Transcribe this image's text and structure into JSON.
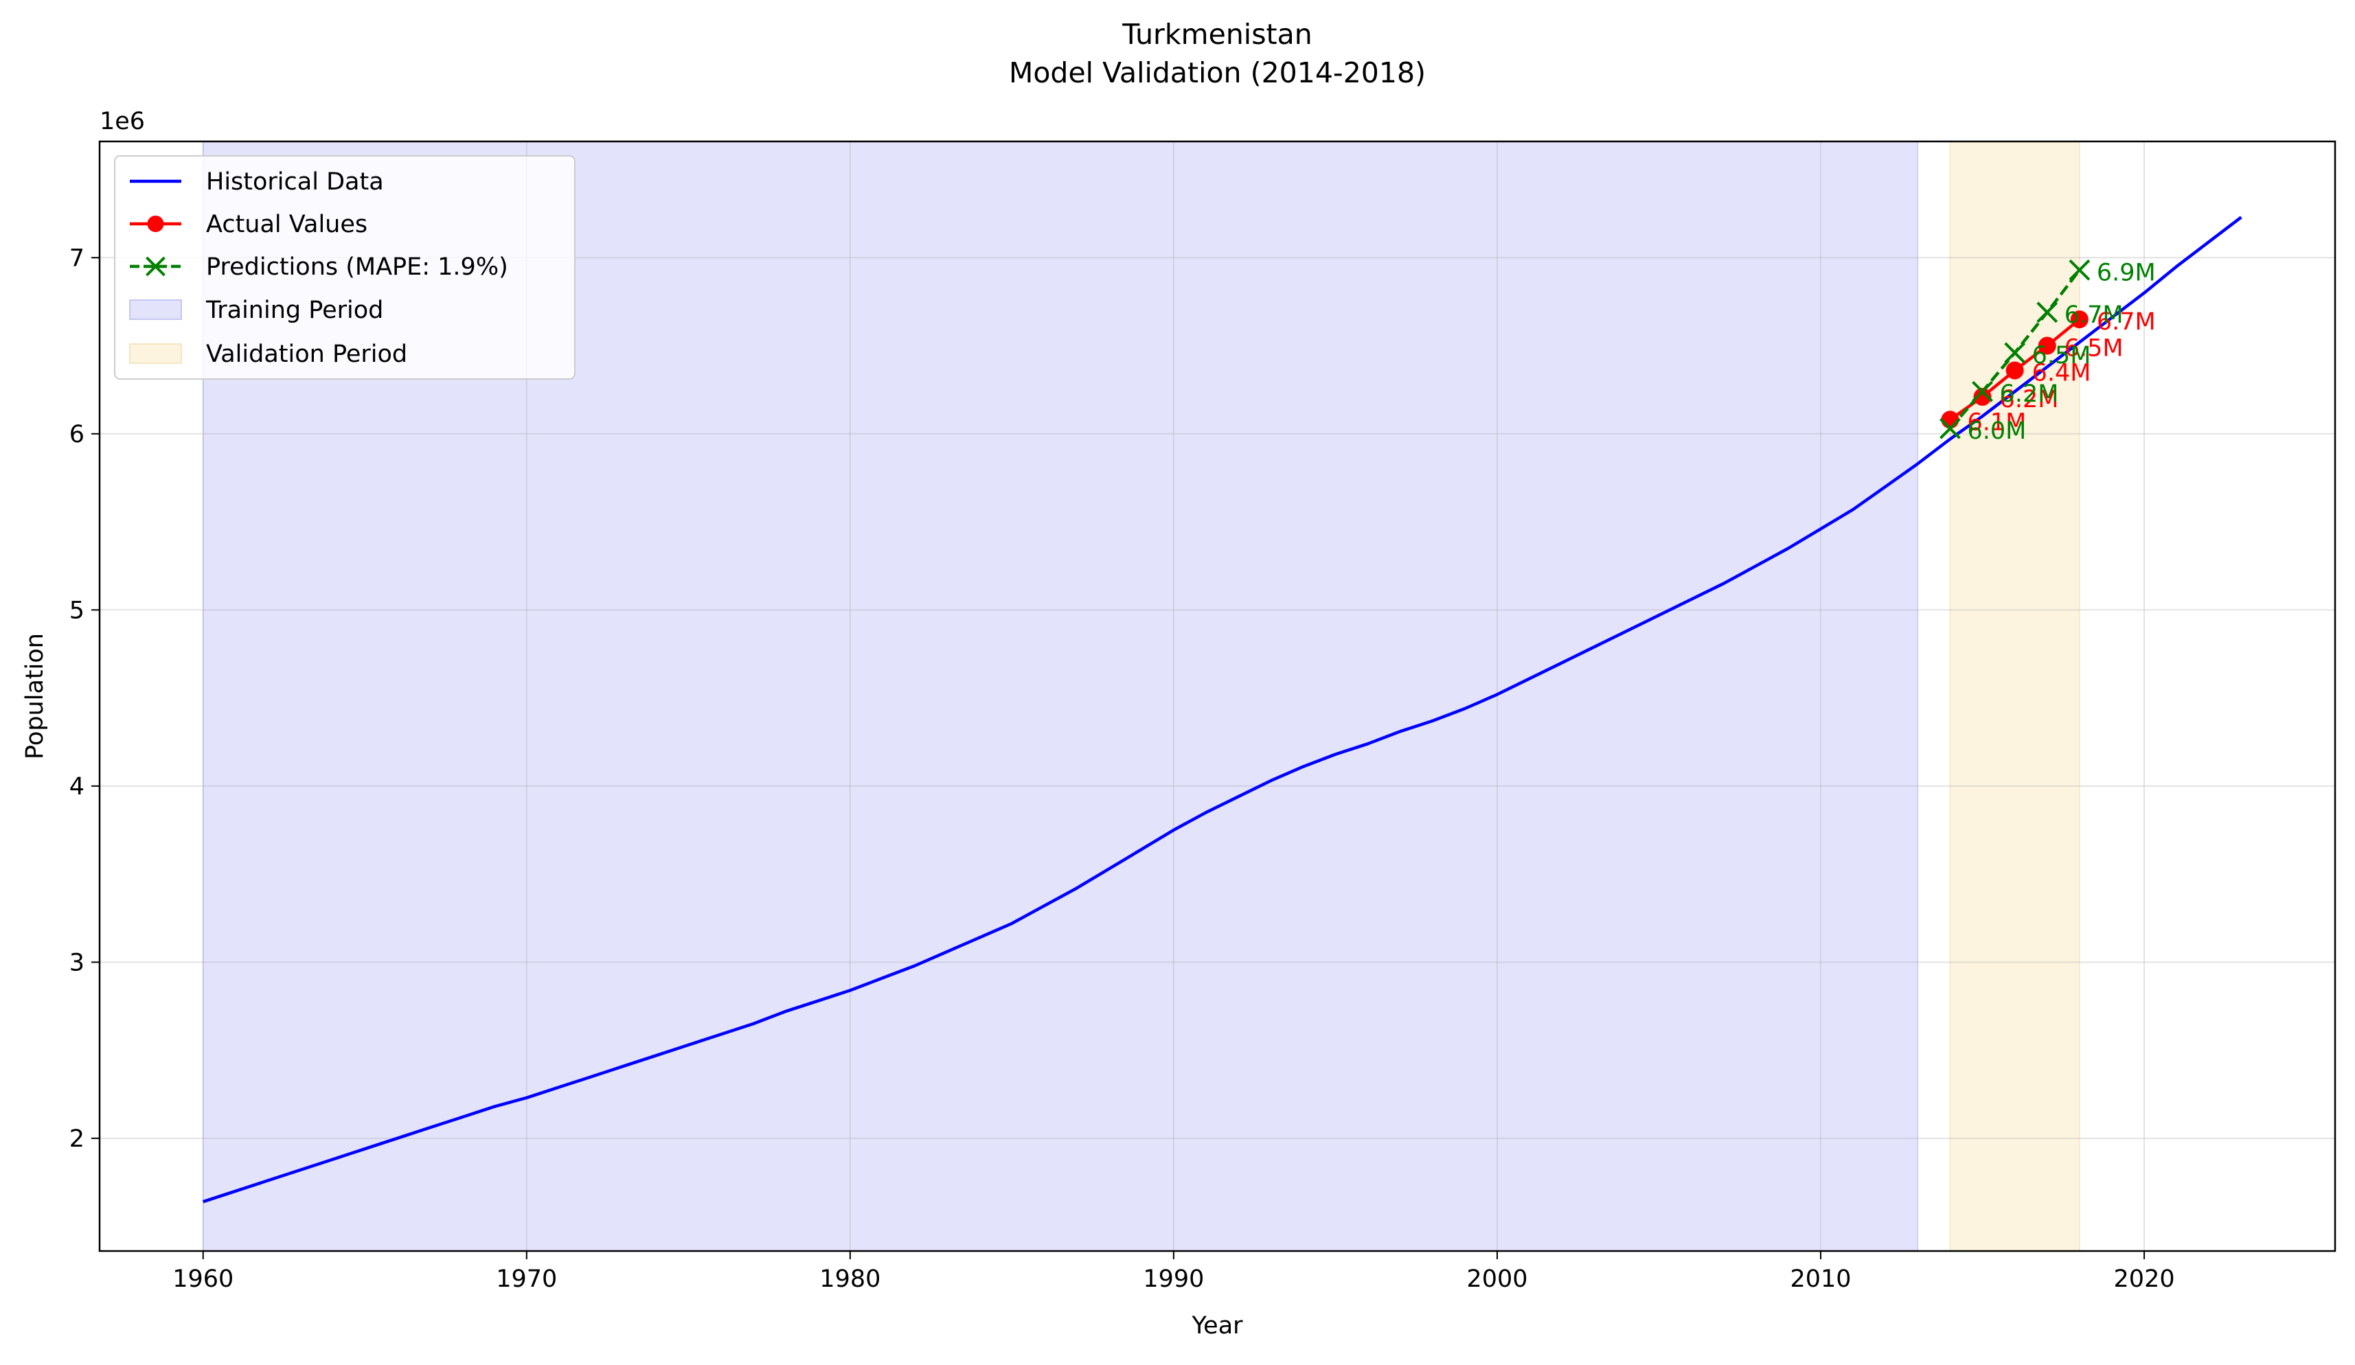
{
  "chart_data": {
    "type": "line",
    "title": "Turkmenistan",
    "subtitle": "Model Validation (2014-2018)",
    "xlabel": "Year",
    "ylabel": "Population",
    "y_offset_label": "1e6",
    "xlim": [
      1956.8,
      2025.9
    ],
    "ylim": [
      1.36,
      7.66
    ],
    "x_ticks": [
      1960,
      1970,
      1980,
      1990,
      2000,
      2010,
      2020
    ],
    "x_tick_labels": [
      "1960",
      "1970",
      "1980",
      "1990",
      "2000",
      "2010",
      "2020"
    ],
    "y_ticks": [
      2,
      3,
      4,
      5,
      6,
      7
    ],
    "y_tick_labels": [
      "2",
      "3",
      "4",
      "5",
      "6",
      "7"
    ],
    "grid": true,
    "legend_position": "top-left",
    "colors": {
      "historical": "#0000ff",
      "actual": "#ff0000",
      "predictions": "#008000",
      "training_fill": "#e3e3fc",
      "validation_fill": "#fdf4e0"
    },
    "shaded_regions": [
      {
        "name": "Training Period",
        "x_start": 1960,
        "x_end": 2013
      },
      {
        "name": "Validation Period",
        "x_start": 2014,
        "x_end": 2018
      }
    ],
    "series": [
      {
        "name": "Historical Data",
        "style": "solid-line",
        "x": [
          1960,
          1961,
          1962,
          1963,
          1964,
          1965,
          1966,
          1967,
          1968,
          1969,
          1970,
          1971,
          1972,
          1973,
          1974,
          1975,
          1976,
          1977,
          1978,
          1979,
          1980,
          1981,
          1982,
          1983,
          1984,
          1985,
          1986,
          1987,
          1988,
          1989,
          1990,
          1991,
          1992,
          1993,
          1994,
          1995,
          1996,
          1997,
          1998,
          1999,
          2000,
          2001,
          2002,
          2003,
          2004,
          2005,
          2006,
          2007,
          2008,
          2009,
          2010,
          2011,
          2012,
          2013,
          2014,
          2015,
          2016,
          2017,
          2018,
          2019,
          2020,
          2021,
          2022,
          2023
        ],
        "y": [
          1.64,
          1.7,
          1.76,
          1.82,
          1.88,
          1.94,
          2.0,
          2.06,
          2.12,
          2.18,
          2.23,
          2.29,
          2.35,
          2.41,
          2.47,
          2.53,
          2.59,
          2.65,
          2.72,
          2.78,
          2.84,
          2.91,
          2.98,
          3.06,
          3.14,
          3.22,
          3.32,
          3.42,
          3.53,
          3.64,
          3.75,
          3.85,
          3.94,
          4.03,
          4.11,
          4.18,
          4.24,
          4.31,
          4.37,
          4.44,
          4.52,
          4.61,
          4.7,
          4.79,
          4.88,
          4.97,
          5.06,
          5.15,
          5.25,
          5.35,
          5.46,
          5.57,
          5.7,
          5.83,
          5.97,
          6.1,
          6.24,
          6.38,
          6.52,
          6.66,
          6.8,
          6.95,
          7.09,
          7.23
        ]
      },
      {
        "name": "Actual Values",
        "style": "line-with-circles",
        "x": [
          2014,
          2015,
          2016,
          2017,
          2018
        ],
        "y": [
          6.08,
          6.21,
          6.36,
          6.5,
          6.65
        ],
        "labels": [
          "6.1M",
          "6.2M",
          "6.4M",
          "6.5M",
          "6.7M"
        ]
      },
      {
        "name": "Predictions (MAPE: 1.9%)",
        "style": "dashed-with-x",
        "x": [
          2014,
          2015,
          2016,
          2017,
          2018
        ],
        "y": [
          6.03,
          6.24,
          6.46,
          6.69,
          6.93
        ],
        "labels": [
          "6.0M",
          "6.2M",
          "6.5M",
          "6.7M",
          "6.9M"
        ]
      }
    ]
  }
}
